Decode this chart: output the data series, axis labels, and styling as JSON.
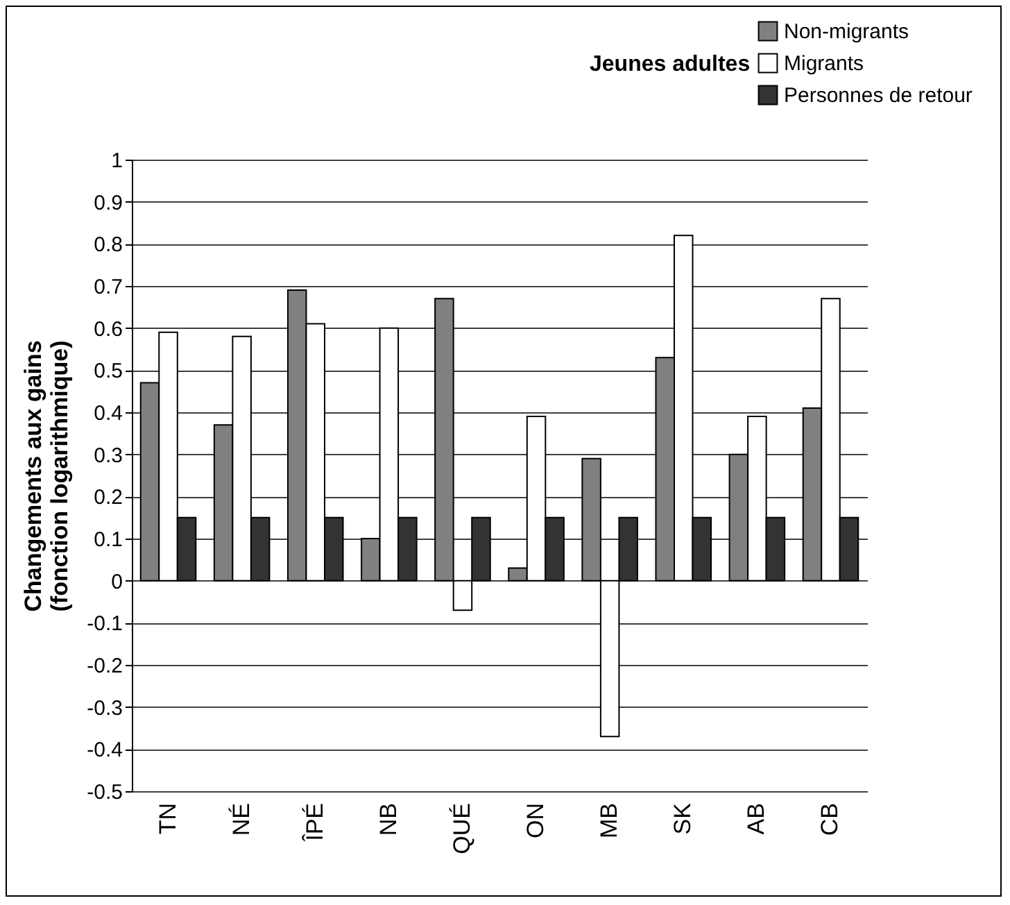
{
  "chart_data": {
    "type": "bar",
    "legend_title": "Jeunes adultes",
    "ylabel": "Changements aux gains\n(fonction logarithmique)",
    "categories": [
      "TN",
      "NÉ",
      "ÎPÉ",
      "NB",
      "QUÉ",
      "ON",
      "MB",
      "SK",
      "AB",
      "CB"
    ],
    "series": [
      {
        "name": "Non-migrants",
        "color": "#808080",
        "values": [
          0.47,
          0.37,
          0.69,
          0.1,
          0.67,
          0.03,
          0.29,
          0.53,
          0.3,
          0.41
        ]
      },
      {
        "name": "Migrants",
        "color": "#ffffff",
        "values": [
          0.59,
          0.58,
          0.61,
          0.6,
          -0.07,
          0.39,
          -0.37,
          0.82,
          0.39,
          0.67
        ]
      },
      {
        "name": "Personnes de retour",
        "color": "#333333",
        "values": [
          0.15,
          0.15,
          0.15,
          0.15,
          0.15,
          0.15,
          0.15,
          0.15,
          0.15,
          0.15
        ]
      }
    ],
    "ylim": [
      -0.5,
      1
    ],
    "yticks": [
      -0.5,
      -0.4,
      -0.3,
      -0.2,
      -0.1,
      0,
      0.1,
      0.2,
      0.3,
      0.4,
      0.5,
      0.6,
      0.7,
      0.8,
      0.9,
      1
    ],
    "grid": "y",
    "legend": "top right"
  }
}
